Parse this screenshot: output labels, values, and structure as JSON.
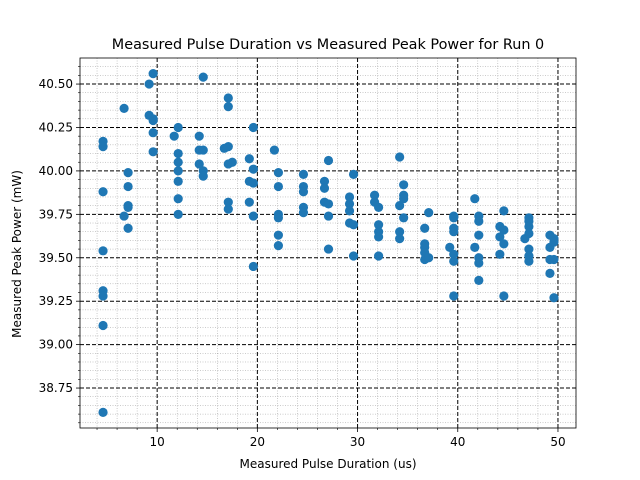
{
  "chart_data": {
    "type": "scatter",
    "title": "Measured Pulse Duration vs Measured Peak Power for Run 0",
    "xlabel": "Measured Pulse Duration (us)",
    "ylabel": "Measured Peak Power (mW)",
    "xlim": [
      2.3,
      51.8
    ],
    "ylim": [
      38.52,
      40.65
    ],
    "xticks": [
      10,
      20,
      30,
      40,
      50
    ],
    "xtick_labels": [
      "10",
      "20",
      "30",
      "40",
      "50"
    ],
    "yticks": [
      38.75,
      39.0,
      39.25,
      39.5,
      39.75,
      40.0,
      40.25,
      40.5
    ],
    "ytick_labels": [
      "38.75",
      "39.00",
      "39.25",
      "39.50",
      "39.75",
      "40.00",
      "40.25",
      "40.50"
    ],
    "grid": {
      "major": "dashed black",
      "minor": "dotted gray"
    },
    "marker_color": "#1f77b4",
    "points": [
      [
        4.6,
        40.17
      ],
      [
        4.6,
        40.14
      ],
      [
        4.6,
        39.88
      ],
      [
        4.6,
        39.54
      ],
      [
        4.6,
        39.31
      ],
      [
        4.6,
        39.28
      ],
      [
        4.6,
        39.11
      ],
      [
        4.6,
        38.61
      ],
      [
        6.7,
        40.36
      ],
      [
        6.7,
        39.74
      ],
      [
        7.1,
        39.99
      ],
      [
        7.1,
        39.91
      ],
      [
        7.1,
        39.8
      ],
      [
        7.1,
        39.79
      ],
      [
        7.1,
        39.67
      ],
      [
        9.2,
        40.5
      ],
      [
        9.2,
        40.32
      ],
      [
        9.6,
        40.56
      ],
      [
        9.6,
        40.3
      ],
      [
        9.6,
        40.29
      ],
      [
        9.6,
        40.22
      ],
      [
        9.6,
        40.11
      ],
      [
        11.7,
        40.2
      ],
      [
        12.1,
        40.25
      ],
      [
        12.1,
        40.1
      ],
      [
        12.1,
        40.05
      ],
      [
        12.1,
        40.0
      ],
      [
        12.1,
        39.94
      ],
      [
        12.1,
        39.84
      ],
      [
        12.1,
        39.75
      ],
      [
        14.2,
        40.2
      ],
      [
        14.2,
        40.12
      ],
      [
        14.2,
        40.04
      ],
      [
        14.6,
        40.54
      ],
      [
        14.6,
        40.12
      ],
      [
        14.6,
        40.0
      ],
      [
        14.6,
        39.97
      ],
      [
        16.7,
        40.13
      ],
      [
        17.1,
        40.42
      ],
      [
        17.1,
        40.37
      ],
      [
        17.1,
        40.14
      ],
      [
        17.1,
        40.04
      ],
      [
        17.1,
        39.82
      ],
      [
        17.1,
        39.78
      ],
      [
        17.5,
        40.05
      ],
      [
        19.2,
        40.07
      ],
      [
        19.2,
        39.94
      ],
      [
        19.2,
        39.82
      ],
      [
        19.6,
        40.25
      ],
      [
        19.6,
        40.01
      ],
      [
        19.6,
        39.93
      ],
      [
        19.6,
        39.74
      ],
      [
        19.6,
        39.45
      ],
      [
        21.7,
        40.12
      ],
      [
        22.1,
        39.99
      ],
      [
        22.1,
        39.91
      ],
      [
        22.1,
        39.75
      ],
      [
        22.1,
        39.73
      ],
      [
        22.1,
        39.63
      ],
      [
        22.1,
        39.57
      ],
      [
        24.6,
        39.98
      ],
      [
        24.6,
        39.91
      ],
      [
        24.6,
        39.88
      ],
      [
        24.6,
        39.79
      ],
      [
        24.6,
        39.76
      ],
      [
        26.7,
        39.94
      ],
      [
        26.7,
        39.9
      ],
      [
        26.7,
        39.82
      ],
      [
        27.1,
        40.06
      ],
      [
        27.1,
        39.81
      ],
      [
        27.1,
        39.74
      ],
      [
        27.1,
        39.55
      ],
      [
        29.2,
        39.85
      ],
      [
        29.2,
        39.81
      ],
      [
        29.2,
        39.77
      ],
      [
        29.2,
        39.7
      ],
      [
        29.6,
        39.98
      ],
      [
        29.6,
        39.69
      ],
      [
        29.6,
        39.51
      ],
      [
        31.7,
        39.86
      ],
      [
        31.7,
        39.82
      ],
      [
        32.1,
        39.79
      ],
      [
        32.1,
        39.69
      ],
      [
        32.1,
        39.65
      ],
      [
        32.1,
        39.62
      ],
      [
        32.1,
        39.51
      ],
      [
        34.2,
        40.08
      ],
      [
        34.2,
        39.8
      ],
      [
        34.2,
        39.65
      ],
      [
        34.2,
        39.61
      ],
      [
        34.6,
        39.92
      ],
      [
        34.6,
        39.86
      ],
      [
        34.6,
        39.84
      ],
      [
        34.6,
        39.73
      ],
      [
        36.7,
        39.67
      ],
      [
        36.7,
        39.58
      ],
      [
        36.7,
        39.56
      ],
      [
        36.7,
        39.53
      ],
      [
        36.7,
        39.49
      ],
      [
        37.1,
        39.76
      ],
      [
        37.1,
        39.5
      ],
      [
        39.2,
        39.56
      ],
      [
        39.6,
        39.74
      ],
      [
        39.6,
        39.73
      ],
      [
        39.6,
        39.67
      ],
      [
        39.6,
        39.65
      ],
      [
        39.6,
        39.52
      ],
      [
        39.6,
        39.48
      ],
      [
        39.6,
        39.28
      ],
      [
        41.7,
        39.84
      ],
      [
        41.7,
        39.56
      ],
      [
        42.1,
        39.74
      ],
      [
        42.1,
        39.71
      ],
      [
        42.1,
        39.63
      ],
      [
        42.1,
        39.5
      ],
      [
        42.1,
        39.47
      ],
      [
        42.1,
        39.37
      ],
      [
        44.2,
        39.68
      ],
      [
        44.2,
        39.62
      ],
      [
        44.2,
        39.52
      ],
      [
        44.6,
        39.77
      ],
      [
        44.6,
        39.66
      ],
      [
        44.6,
        39.58
      ],
      [
        44.6,
        39.28
      ],
      [
        46.7,
        39.61
      ],
      [
        47.1,
        39.73
      ],
      [
        47.1,
        39.71
      ],
      [
        47.1,
        39.68
      ],
      [
        47.1,
        39.64
      ],
      [
        47.1,
        39.55
      ],
      [
        47.1,
        39.51
      ],
      [
        47.1,
        39.48
      ],
      [
        49.2,
        39.63
      ],
      [
        49.2,
        39.56
      ],
      [
        49.2,
        39.49
      ],
      [
        49.2,
        39.41
      ],
      [
        49.6,
        39.61
      ],
      [
        49.6,
        39.59
      ],
      [
        49.6,
        39.49
      ],
      [
        49.6,
        39.27
      ]
    ]
  }
}
